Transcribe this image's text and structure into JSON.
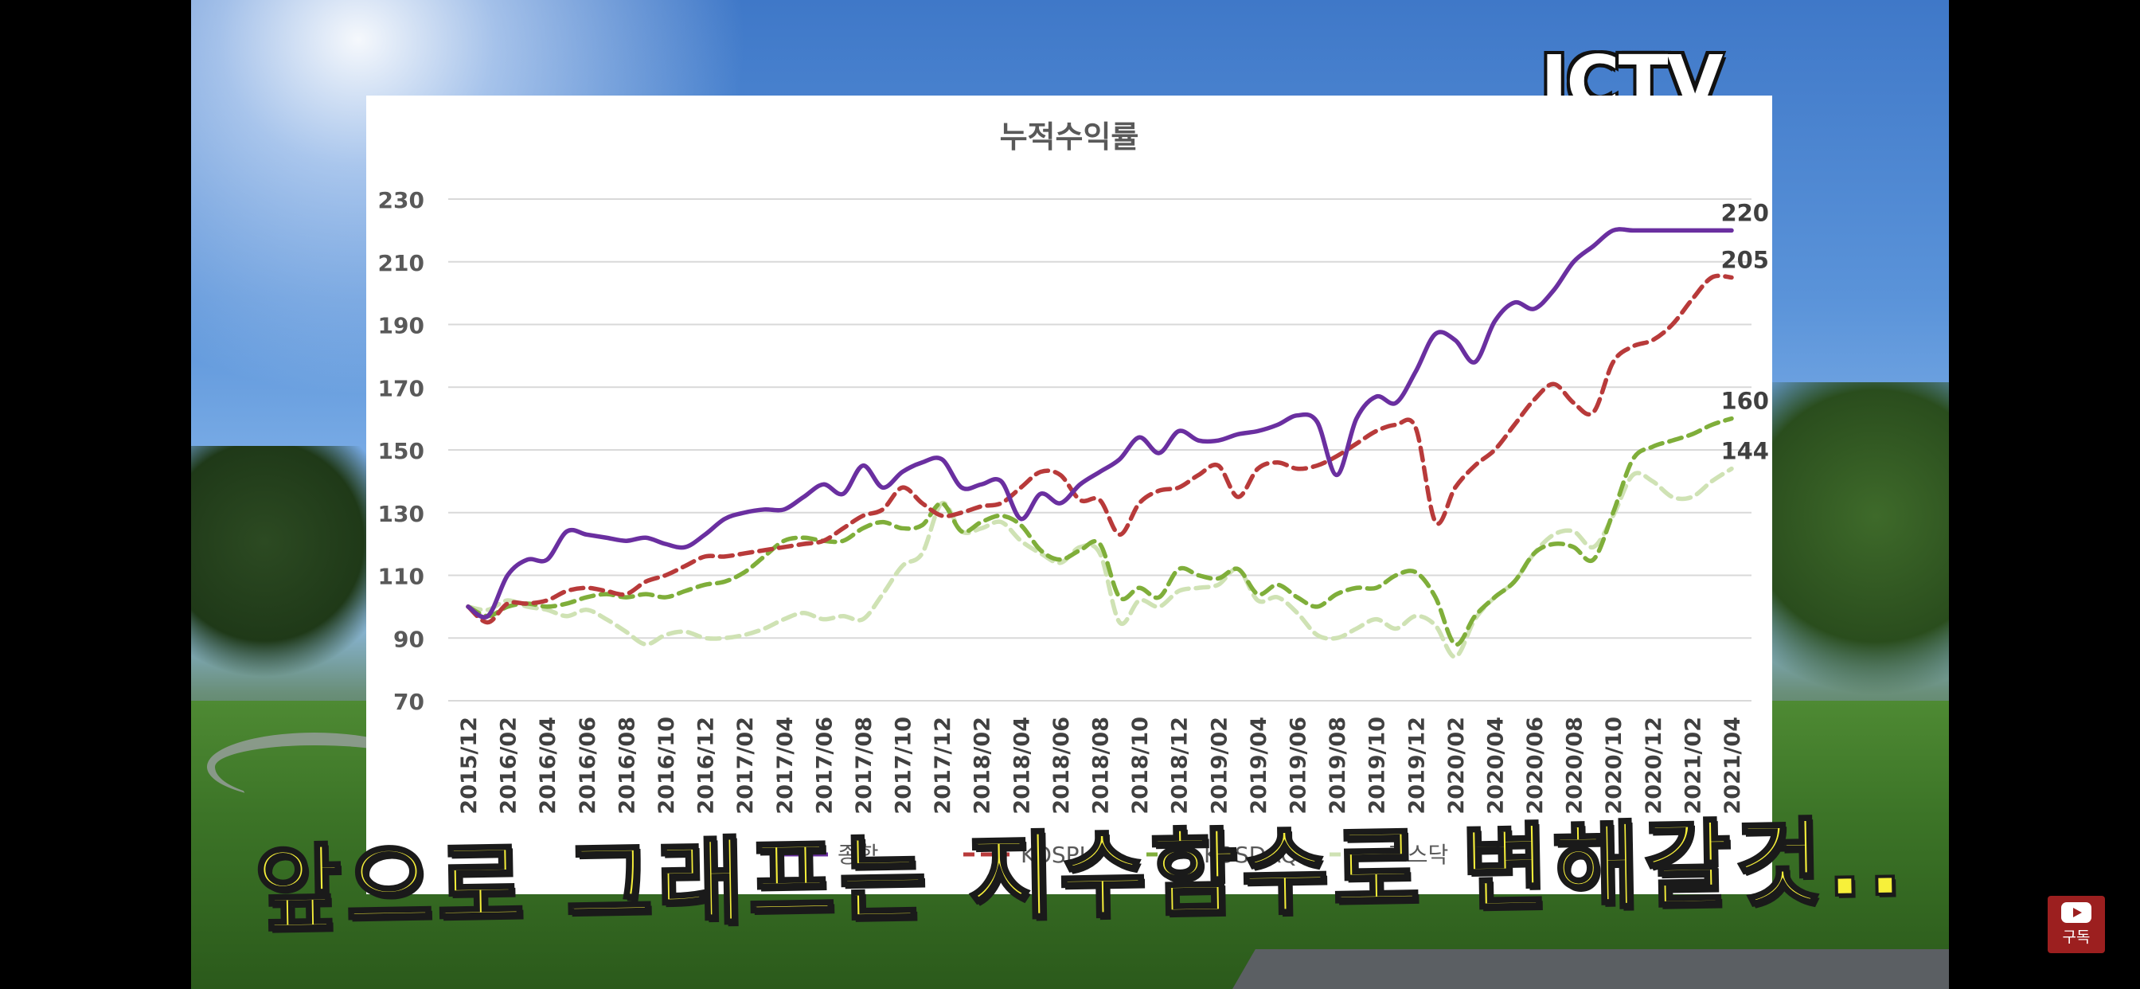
{
  "overlay": {
    "logo": "JCTV",
    "caption": "앞으로 그래프는 지수함수로 변해갈것..",
    "subscribe_label": "구독"
  },
  "colors": {
    "purple": "#6a2fa0",
    "red": "#b83a3a",
    "green": "#7fae3a",
    "light_green": "#cfe2b4",
    "caption": "#f7f03a"
  },
  "chart_data": {
    "type": "line",
    "title": "누적수익률",
    "ylim": [
      70,
      230
    ],
    "yticks": [
      70,
      90,
      110,
      130,
      150,
      170,
      190,
      210,
      230
    ],
    "grid": true,
    "legend_position": "bottom",
    "x": [
      "2015/12",
      "2016/01",
      "2016/02",
      "2016/03",
      "2016/04",
      "2016/05",
      "2016/06",
      "2016/07",
      "2016/08",
      "2016/09",
      "2016/10",
      "2016/11",
      "2016/12",
      "2017/01",
      "2017/02",
      "2017/03",
      "2017/04",
      "2017/05",
      "2017/06",
      "2017/07",
      "2017/08",
      "2017/09",
      "2017/10",
      "2017/11",
      "2017/12",
      "2018/01",
      "2018/02",
      "2018/03",
      "2018/04",
      "2018/05",
      "2018/06",
      "2018/07",
      "2018/08",
      "2018/09",
      "2018/10",
      "2018/11",
      "2018/12",
      "2019/01",
      "2019/02",
      "2019/03",
      "2019/04",
      "2019/05",
      "2019/06",
      "2019/07",
      "2019/08",
      "2019/09",
      "2019/10",
      "2019/11",
      "2019/12",
      "2020/01",
      "2020/02",
      "2020/03",
      "2020/04",
      "2020/05",
      "2020/06",
      "2020/07",
      "2020/08",
      "2020/09",
      "2020/10",
      "2020/11",
      "2020/12",
      "2021/01",
      "2021/02",
      "2021/03",
      "2021/04"
    ],
    "xtick_labels": [
      "2015/12",
      "2016/02",
      "2016/04",
      "2016/06",
      "2016/08",
      "2016/10",
      "2016/12",
      "2017/02",
      "2017/04",
      "2017/06",
      "2017/08",
      "2017/10",
      "2017/12",
      "2018/02",
      "2018/04",
      "2018/06",
      "2018/08",
      "2018/10",
      "2018/12",
      "2019/02",
      "2019/04",
      "2019/06",
      "2019/08",
      "2019/10",
      "2019/12",
      "2020/02",
      "2020/04",
      "2020/06",
      "2020/08",
      "2020/10",
      "2020/12",
      "2021/02",
      "2021/04"
    ],
    "series": [
      {
        "name": "종합",
        "color": "#6a2fa0",
        "dash": "solid",
        "end_label": "220",
        "values": [
          100,
          97,
          110,
          115,
          115,
          124,
          123,
          122,
          121,
          122,
          120,
          119,
          123,
          128,
          130,
          131,
          131,
          135,
          139,
          136,
          145,
          138,
          143,
          146,
          147,
          138,
          139,
          140,
          128,
          136,
          133,
          139,
          143,
          147,
          154,
          149,
          156,
          153,
          153,
          155,
          156,
          158,
          161,
          159,
          142,
          160,
          167,
          165,
          175,
          187,
          185,
          178,
          191,
          197,
          195,
          201,
          210,
          215,
          220,
          220,
          220,
          220,
          220,
          220,
          220
        ]
      },
      {
        "name": "KOSPI",
        "color": "#b83a3a",
        "dash": "dashed",
        "end_label": "205",
        "values": [
          100,
          95,
          101,
          101,
          102,
          105,
          106,
          105,
          104,
          108,
          110,
          113,
          116,
          116,
          117,
          118,
          119,
          120,
          121,
          125,
          129,
          131,
          138,
          133,
          129,
          130,
          132,
          133,
          138,
          143,
          142,
          134,
          134,
          123,
          133,
          137,
          138,
          142,
          145,
          135,
          144,
          146,
          144,
          145,
          148,
          152,
          156,
          158,
          157,
          127,
          138,
          145,
          150,
          158,
          166,
          171,
          165,
          162,
          178,
          183,
          185,
          190,
          198,
          205,
          205
        ]
      },
      {
        "name": "KOSDAQ",
        "color": "#7fae3a",
        "dash": "dashed",
        "end_label": "160",
        "values": [
          100,
          97,
          100,
          101,
          100,
          101,
          103,
          104,
          103,
          104,
          103,
          105,
          107,
          108,
          111,
          116,
          121,
          122,
          121,
          121,
          125,
          127,
          125,
          126,
          133,
          124,
          127,
          129,
          126,
          118,
          115,
          118,
          120,
          103,
          106,
          103,
          112,
          110,
          109,
          112,
          104,
          107,
          103,
          100,
          104,
          106,
          106,
          110,
          111,
          103,
          88,
          97,
          103,
          108,
          117,
          120,
          119,
          115,
          130,
          147,
          151,
          153,
          155,
          158,
          160
        ]
      },
      {
        "name": "코스닥",
        "color": "#cfe2b4",
        "dash": "dashed",
        "end_label": "144",
        "values": [
          100,
          99,
          102,
          100,
          99,
          97,
          99,
          96,
          92,
          88,
          91,
          92,
          90,
          90,
          91,
          93,
          96,
          98,
          96,
          97,
          96,
          104,
          113,
          117,
          133,
          124,
          125,
          127,
          121,
          117,
          114,
          119,
          117,
          95,
          102,
          100,
          105,
          106,
          107,
          112,
          102,
          103,
          98,
          91,
          90,
          93,
          96,
          93,
          97,
          94,
          84,
          96,
          103,
          108,
          117,
          123,
          124,
          119,
          129,
          142,
          140,
          135,
          135,
          140,
          144
        ]
      }
    ]
  }
}
